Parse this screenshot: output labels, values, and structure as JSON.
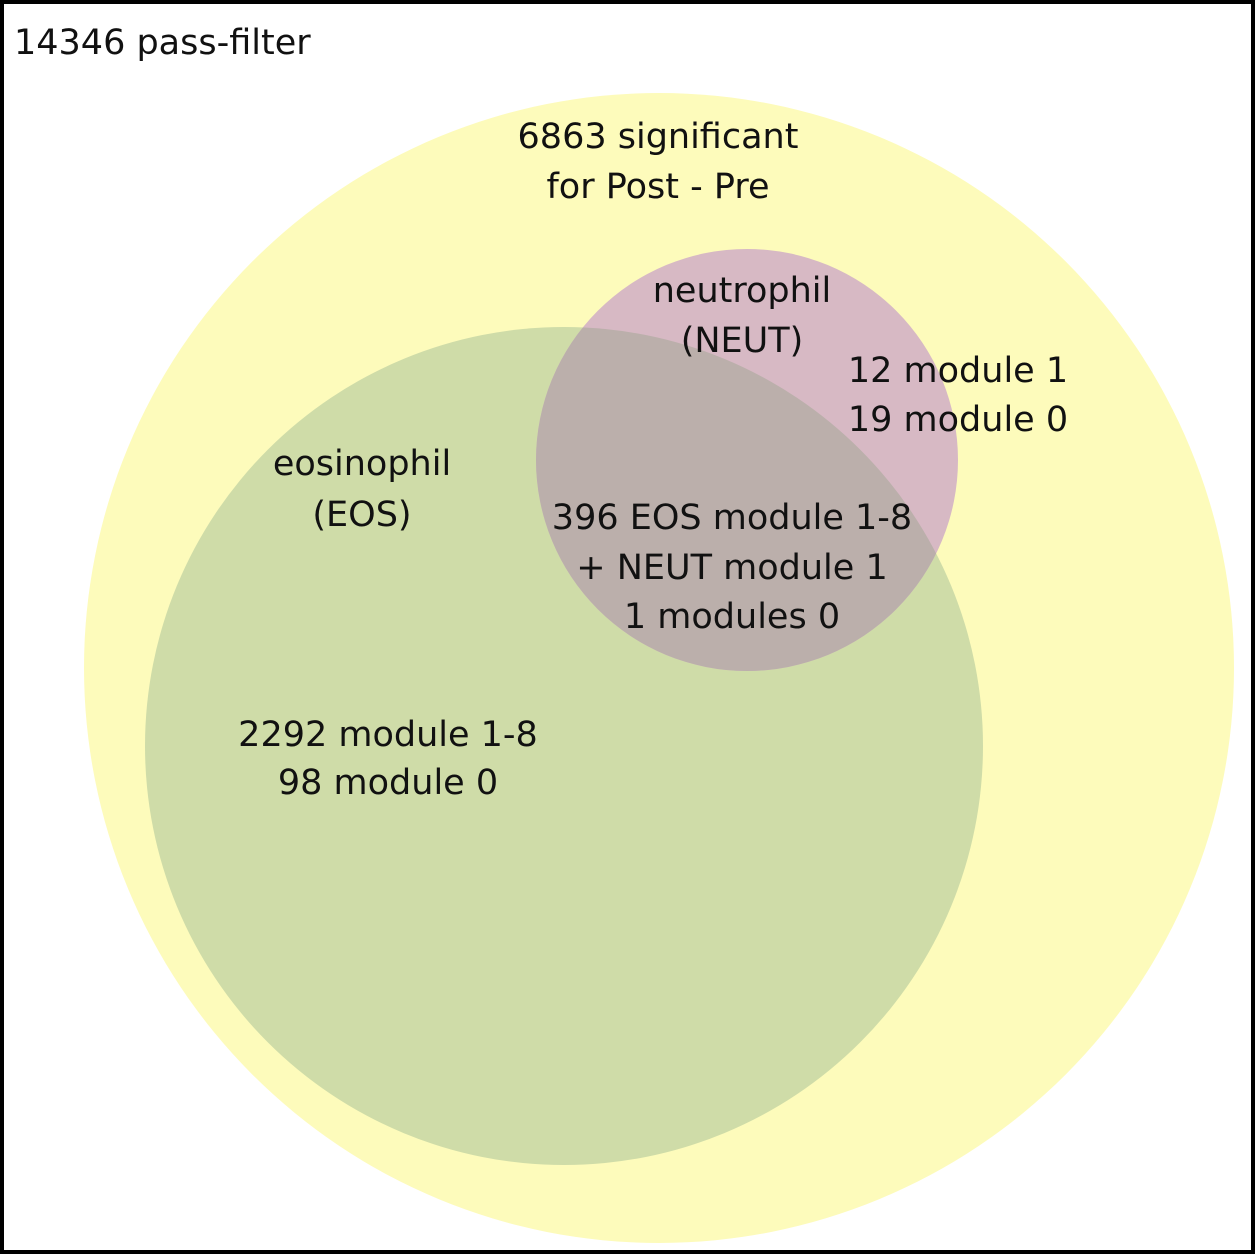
{
  "colors": {
    "frame": "#000000",
    "significant_fill": "#fdfbbb",
    "eosinophil_fill": "#cfdca8",
    "neutrophil_fill": "#d7b9c4",
    "overlap_fill": "#bbafab",
    "text": "#111111"
  },
  "universe": {
    "label": "14346 pass-filter"
  },
  "significant": {
    "line1": "6863 significant",
    "line2": "for Post - Pre"
  },
  "neutrophil": {
    "name": "neutrophil",
    "abbr": "(NEUT)",
    "only_line1": "12 module 1",
    "only_line2": "19 module 0"
  },
  "eosinophil": {
    "name": "eosinophil",
    "abbr": "(EOS)",
    "only_line1": "2292 module 1-8",
    "only_line2": "98 module 0"
  },
  "overlap": {
    "line1": "396 EOS module 1-8",
    "line2": "+ NEUT module 1",
    "line3": "1 modules 0"
  }
}
